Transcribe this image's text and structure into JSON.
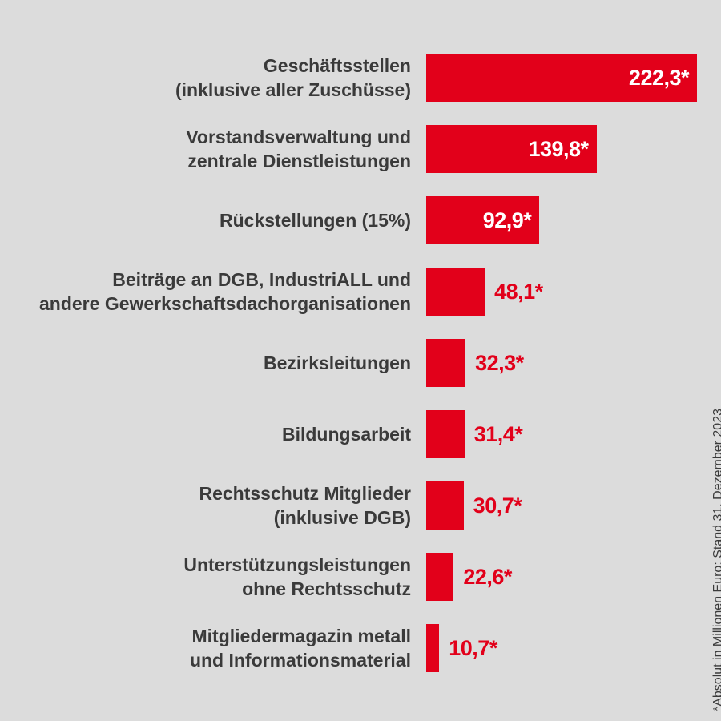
{
  "chart_data": {
    "type": "bar",
    "orientation": "horizontal",
    "categories": [
      "Geschäftsstellen\n(inklusive aller Zuschüsse)",
      "Vorstandsverwaltung und\nzentrale Dienstleistungen",
      "Rückstellungen (15%)",
      "Beiträge an DGB, IndustriALL und\nandere Gewerkschaftsdachorganisationen",
      "Bezirksleitungen",
      "Bildungsarbeit",
      "Rechtsschutz Mitglieder\n(inklusive DGB)",
      "Unterstützungsleistungen\nohne Rechtsschutz",
      "Mitgliedermagazin metall\nund Informationsmaterial"
    ],
    "values": [
      222.3,
      139.8,
      92.9,
      48.1,
      32.3,
      31.4,
      30.7,
      22.6,
      10.7
    ],
    "value_labels": [
      "222,3*",
      "139,8*",
      "92,9*",
      "48,1*",
      "32,3*",
      "31,4*",
      "30,7*",
      "22,6*",
      "10,7*"
    ],
    "footnote": "*Absolut in Millionen Euro; Stand 31. Dezember 2023",
    "colors": {
      "bar": "#e2001a",
      "label_text": "#3a3a3a",
      "background": "#dcdcdc",
      "inside_label": "#ffffff"
    }
  }
}
